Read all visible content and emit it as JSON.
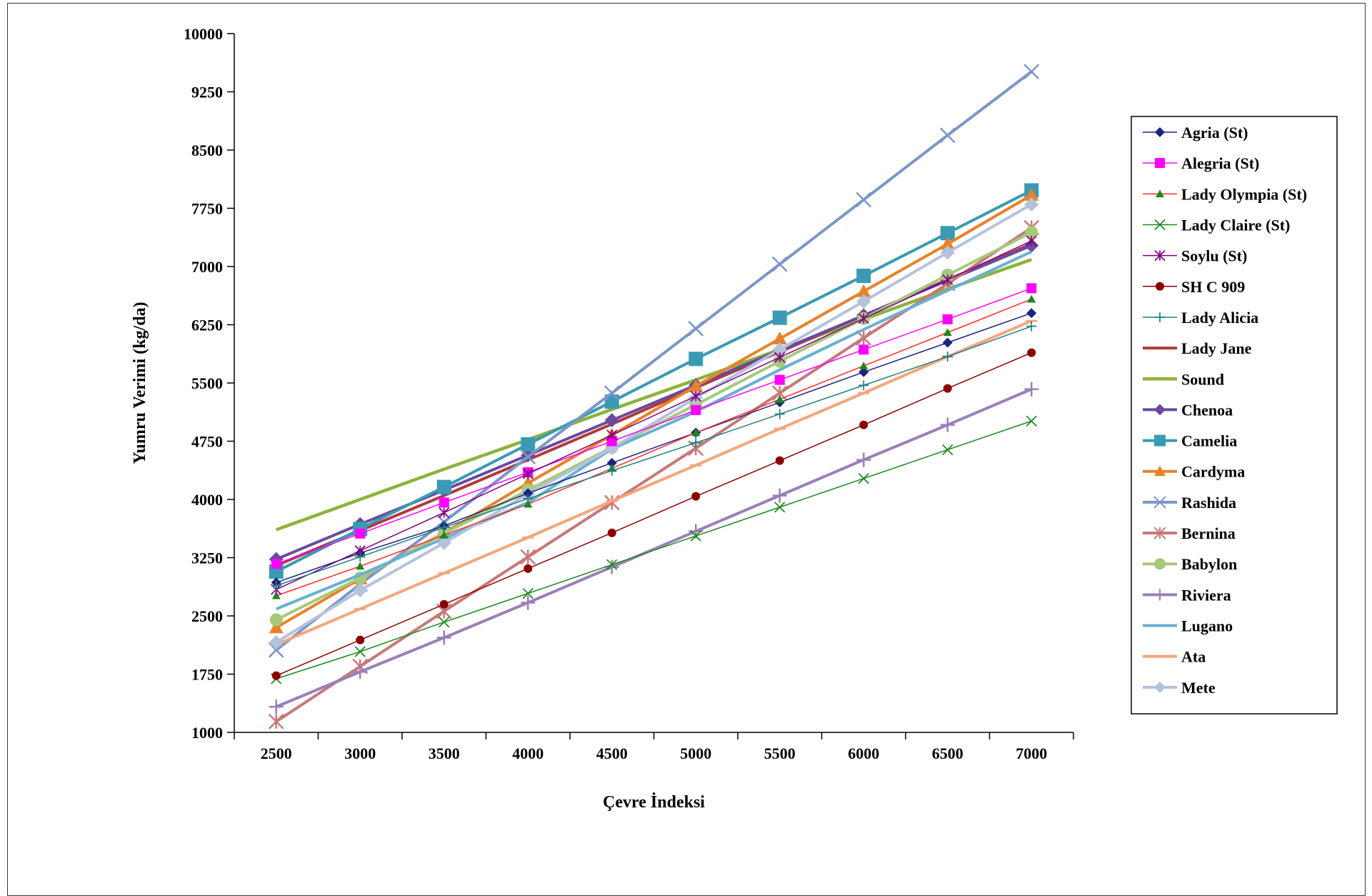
{
  "chart_data": {
    "type": "line",
    "title": "",
    "xlabel": "Çevre İndeksi",
    "ylabel": "Yumru Verimi (kg/da)",
    "x": [
      2500,
      3000,
      3500,
      4000,
      4500,
      5000,
      5500,
      6000,
      6500,
      7000
    ],
    "x_tick_labels": [
      "2500",
      "3000",
      "3500",
      "4000",
      "4500",
      "5000",
      "5500",
      "6000",
      "6500",
      "7000"
    ],
    "ylim": [
      1000,
      10000
    ],
    "y_ticks": [
      1000,
      1750,
      2500,
      3250,
      4000,
      4750,
      5500,
      6250,
      7000,
      7750,
      8500,
      9250,
      10000
    ],
    "y_tick_labels": [
      "1000",
      "1750",
      "2500",
      "3250",
      "4000",
      "4750",
      "5500",
      "6250",
      "7000",
      "7750",
      "8500",
      "9250",
      "10000"
    ],
    "grid": false,
    "legend_position": "right",
    "series": [
      {
        "name": "Agria (St)",
        "color": "#1a237e",
        "marker": "diamond",
        "width": 1.5,
        "msize": 7,
        "values": [
          2930,
          3310,
          3660,
          4080,
          4470,
          4860,
          5250,
          5640,
          6020,
          6400
        ]
      },
      {
        "name": "Alegria (St)",
        "color": "#ff00ff",
        "marker": "square",
        "width": 1.5,
        "msize": 7,
        "values": [
          3170,
          3560,
          3960,
          4350,
          4750,
          5150,
          5540,
          5930,
          6320,
          6720
        ]
      },
      {
        "name": "Lady Olympia (St)",
        "color": "#ff2a2a",
        "marker": "triangle",
        "markerColor": "#1a8a1a",
        "width": 1.5,
        "msize": 6,
        "values": [
          2760,
          3140,
          3540,
          3940,
          4400,
          4860,
          5290,
          5720,
          6150,
          6580
        ]
      },
      {
        "name": "Lady Claire (St)",
        "color": "#1a8a1a",
        "marker": "x",
        "width": 1.5,
        "msize": 7,
        "values": [
          1690,
          2040,
          2420,
          2790,
          3160,
          3530,
          3900,
          4270,
          4640,
          5010
        ]
      },
      {
        "name": "Soylu (St)",
        "color": "#800080",
        "marker": "star",
        "width": 1.5,
        "msize": 7,
        "values": [
          2840,
          3340,
          3830,
          4330,
          4830,
          5330,
          5830,
          6330,
          6830,
          7330
        ]
      },
      {
        "name": "SH C 909",
        "color": "#8b0000",
        "marker": "circle",
        "width": 1.5,
        "msize": 6,
        "values": [
          1730,
          2190,
          2650,
          3110,
          3570,
          4040,
          4500,
          4960,
          5430,
          5890
        ]
      },
      {
        "name": "Lady Alicia",
        "color": "#1f8080",
        "marker": "plus",
        "width": 1.5,
        "msize": 7,
        "values": [
          2890,
          3260,
          3640,
          4010,
          4370,
          4730,
          5100,
          5470,
          5840,
          6230
        ]
      },
      {
        "name": "Lady Jane",
        "color": "#b03a3a",
        "marker": "none",
        "width": 4,
        "msize": 0,
        "values": [
          3150,
          3600,
          4050,
          4510,
          4970,
          5440,
          5900,
          6370,
          6830,
          7290
        ]
      },
      {
        "name": "Sound",
        "color": "#8db33a",
        "marker": "none",
        "width": 4.5,
        "msize": 0,
        "values": [
          3610,
          4000,
          4390,
          4770,
          5160,
          5540,
          5930,
          6320,
          6710,
          7090
        ]
      },
      {
        "name": "Chenoa",
        "color": "#6a4a9e",
        "marker": "diamond",
        "width": 4,
        "msize": 10,
        "values": [
          3230,
          3680,
          4120,
          4570,
          5020,
          5470,
          5920,
          6370,
          6820,
          7270
        ]
      },
      {
        "name": "Camelia",
        "color": "#3a9ab3",
        "marker": "square",
        "width": 4,
        "msize": 10,
        "values": [
          3070,
          3620,
          4160,
          4710,
          5260,
          5810,
          6340,
          6880,
          7430,
          7980
        ]
      },
      {
        "name": "Cardyma",
        "color": "#e8822a",
        "marker": "triangle",
        "width": 4,
        "msize": 10,
        "values": [
          2350,
          2980,
          3570,
          4210,
          4830,
          5460,
          6070,
          6680,
          7290,
          7920
        ]
      },
      {
        "name": "Rashida",
        "color": "#7b96c8",
        "marker": "x",
        "width": 4,
        "msize": 10,
        "values": [
          2060,
          2910,
          3710,
          4550,
          5370,
          6200,
          7030,
          7860,
          8690,
          9510
        ]
      },
      {
        "name": "Bernina",
        "color": "#c87878",
        "marker": "star",
        "width": 4,
        "msize": 10,
        "values": [
          1140,
          1850,
          2560,
          3260,
          3960,
          4660,
          5370,
          6080,
          6780,
          7500
        ]
      },
      {
        "name": "Babylon",
        "color": "#a6c97a",
        "marker": "circle",
        "width": 4,
        "msize": 9,
        "values": [
          2450,
          2990,
          3560,
          4120,
          4670,
          5220,
          5780,
          6330,
          6890,
          7440
        ]
      },
      {
        "name": "Riviera",
        "color": "#9a7fb8",
        "marker": "plus",
        "width": 4,
        "msize": 10,
        "values": [
          1330,
          1780,
          2220,
          2670,
          3130,
          3590,
          4050,
          4510,
          4960,
          5420
        ]
      },
      {
        "name": "Lugano",
        "color": "#6ab0d0",
        "marker": "none",
        "width": 4,
        "msize": 0,
        "values": [
          2590,
          3030,
          3500,
          3960,
          4650,
          5130,
          5670,
          6190,
          6690,
          7190
        ]
      },
      {
        "name": "Ata",
        "color": "#f4a67a",
        "marker": "dash",
        "width": 4,
        "msize": 8,
        "values": [
          2130,
          2590,
          3050,
          3510,
          3980,
          4440,
          4910,
          5370,
          5840,
          6300
        ]
      },
      {
        "name": "Mete",
        "color": "#b4c2dc",
        "marker": "diamond",
        "width": 4,
        "msize": 10,
        "values": [
          2160,
          2830,
          3440,
          4070,
          4660,
          5310,
          5930,
          6550,
          7180,
          7800
        ]
      }
    ]
  }
}
